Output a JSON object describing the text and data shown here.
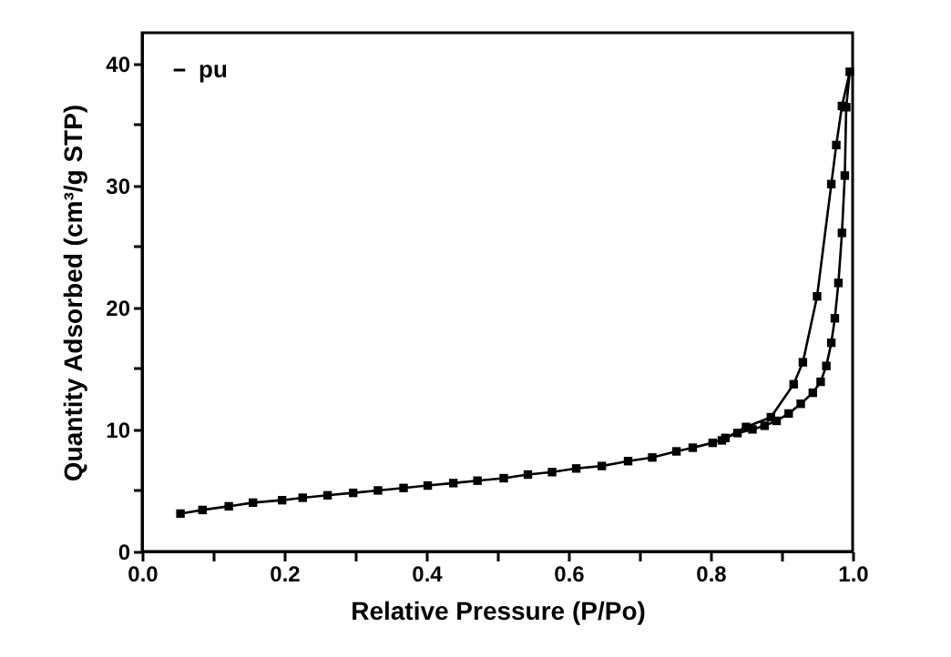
{
  "chart_data": {
    "type": "line",
    "xlabel": "Relative Pressure (P/Po)",
    "ylabel": "Quantity Adsorbed (cm³/g STP)",
    "series": [
      {
        "name": "pu",
        "color": "#000000",
        "x": [
          0.054,
          0.085,
          0.122,
          0.156,
          0.197,
          0.226,
          0.261,
          0.297,
          0.332,
          0.368,
          0.402,
          0.438,
          0.472,
          0.509,
          0.543,
          0.577,
          0.611,
          0.647,
          0.684,
          0.718,
          0.752,
          0.775,
          0.803,
          0.821,
          0.838,
          0.859,
          0.876,
          0.893,
          0.91,
          0.927,
          0.944,
          0.955,
          0.963,
          0.97,
          0.975,
          0.98,
          0.985,
          0.989,
          0.991,
          0.996,
          0.985,
          0.977,
          0.97,
          0.95,
          0.93,
          0.917,
          0.885,
          0.85,
          0.816
        ],
        "values": [
          3.1,
          3.4,
          3.7,
          4.0,
          4.2,
          4.4,
          4.6,
          4.8,
          5.0,
          5.2,
          5.4,
          5.6,
          5.8,
          6.0,
          6.3,
          6.5,
          6.8,
          7.0,
          7.4,
          7.7,
          8.2,
          8.5,
          8.9,
          9.3,
          9.7,
          10.0,
          10.3,
          10.7,
          11.3,
          12.1,
          13.0,
          13.9,
          15.2,
          17.1,
          19.1,
          22.0,
          26.1,
          30.8,
          36.4,
          39.3,
          36.5,
          33.3,
          30.1,
          20.9,
          15.5,
          13.7,
          11.0,
          10.2,
          9.1
        ]
      }
    ],
    "xlim": [
      0,
      1.0
    ],
    "ylim": [
      0,
      42.5
    ],
    "xticks": [
      {
        "value": 0,
        "label": "0.0"
      },
      {
        "value": 0.1,
        "label": null
      },
      {
        "value": 0.2,
        "label": "0.2"
      },
      {
        "value": 0.3,
        "label": null
      },
      {
        "value": 0.4,
        "label": "0.4"
      },
      {
        "value": 0.5,
        "label": null
      },
      {
        "value": 0.6,
        "label": "0.6"
      },
      {
        "value": 0.7,
        "label": null
      },
      {
        "value": 0.8,
        "label": "0.8"
      },
      {
        "value": 0.9,
        "label": null
      },
      {
        "value": 1.0,
        "label": "1.0"
      }
    ],
    "yticks": [
      0,
      {
        "value": 5,
        "label": null
      },
      10,
      {
        "value": 15,
        "label": null
      },
      20,
      {
        "value": 25,
        "label": null
      },
      30,
      {
        "value": 35,
        "label": null
      },
      40
    ],
    "grid": false,
    "legend": "top left",
    "marker": "square",
    "line_style": "solid"
  }
}
